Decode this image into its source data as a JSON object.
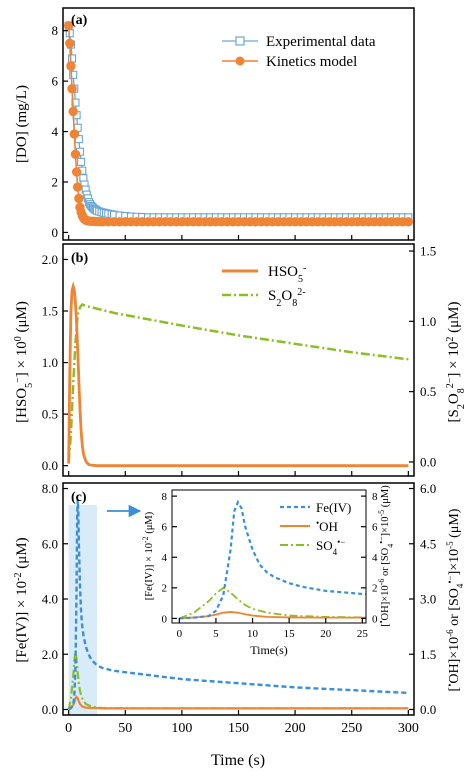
{
  "colors": {
    "experimental": "#6aa6d6",
    "kinetics": "#ee8434",
    "hso5": "#ee8434",
    "s2o8": "#8cbf26",
    "feiv": "#3b8fd8",
    "oh": "#ee8434",
    "so4": "#8cbf26",
    "highlight": "#d7ecf8",
    "arrow": "#3b8fd8"
  },
  "chart_data": [
    {
      "panel": "(a)",
      "type": "line",
      "ylabel": "[DO] (mg/L)",
      "xlim": [
        -5,
        305
      ],
      "ylim": [
        -0.3,
        8.9
      ],
      "yticks": [
        "0",
        "2",
        "4",
        "6",
        "8"
      ],
      "ytick_values": [
        0,
        2,
        4,
        6,
        8
      ],
      "legend": "top-right",
      "series": [
        {
          "name": "Experimental data",
          "marker": "open-square",
          "x": [
            0,
            1,
            2,
            3,
            4,
            5,
            6,
            7,
            8,
            9,
            10,
            11,
            12,
            13,
            14,
            15,
            16,
            17,
            18,
            19,
            20,
            21,
            22,
            23,
            24,
            25,
            27,
            29,
            31,
            33,
            35,
            38,
            40,
            45,
            50,
            55,
            60,
            65,
            70,
            75,
            80,
            85,
            90,
            95,
            100,
            105,
            110,
            115,
            120,
            125,
            130,
            135,
            140,
            145,
            150,
            155,
            160,
            165,
            170,
            175,
            180,
            185,
            190,
            195,
            200,
            205,
            210,
            215,
            220,
            225,
            230,
            235,
            240,
            245,
            250,
            255,
            260,
            265,
            270,
            275,
            280,
            285,
            290,
            295,
            300
          ],
          "y": [
            8.2,
            7.9,
            7.45,
            6.9,
            6.25,
            5.7,
            5.15,
            4.65,
            4.15,
            3.7,
            3.2,
            2.8,
            2.45,
            2.15,
            1.9,
            1.7,
            1.5,
            1.35,
            1.2,
            1.12,
            1.05,
            1.0,
            0.95,
            0.92,
            0.9,
            0.86,
            0.83,
            0.8,
            0.78,
            0.76,
            0.74,
            0.72,
            0.7,
            0.67,
            0.65,
            0.63,
            0.62,
            0.61,
            0.6,
            0.6,
            0.6,
            0.6,
            0.6,
            0.6,
            0.6,
            0.6,
            0.6,
            0.6,
            0.6,
            0.6,
            0.6,
            0.6,
            0.6,
            0.6,
            0.6,
            0.6,
            0.6,
            0.6,
            0.6,
            0.6,
            0.6,
            0.6,
            0.6,
            0.6,
            0.6,
            0.6,
            0.6,
            0.6,
            0.6,
            0.6,
            0.6,
            0.6,
            0.6,
            0.6,
            0.6,
            0.6,
            0.6,
            0.6,
            0.6,
            0.6,
            0.6,
            0.6,
            0.6,
            0.6,
            0.6
          ]
        },
        {
          "name": "Kinetics model",
          "marker": "filled-circle",
          "x": [
            0,
            1,
            2,
            3,
            4,
            5,
            6,
            7,
            8,
            9,
            10,
            11,
            12,
            13,
            14,
            15,
            16,
            17,
            18,
            20,
            22,
            24,
            26,
            28,
            30,
            35,
            40,
            45,
            50,
            55,
            60,
            65,
            70,
            75,
            80,
            85,
            90,
            95,
            100,
            105,
            110,
            115,
            120,
            125,
            130,
            135,
            140,
            145,
            150,
            155,
            160,
            165,
            170,
            175,
            180,
            185,
            190,
            195,
            200,
            205,
            210,
            215,
            220,
            225,
            230,
            235,
            240,
            245,
            250,
            255,
            260,
            265,
            270,
            275,
            280,
            285,
            290,
            295,
            300
          ],
          "y": [
            8.2,
            7.5,
            6.6,
            5.7,
            4.8,
            3.9,
            3.1,
            2.4,
            1.8,
            1.35,
            1.0,
            0.8,
            0.67,
            0.58,
            0.52,
            0.49,
            0.47,
            0.46,
            0.45,
            0.44,
            0.44,
            0.43,
            0.43,
            0.43,
            0.42,
            0.42,
            0.42,
            0.42,
            0.42,
            0.42,
            0.42,
            0.42,
            0.42,
            0.42,
            0.42,
            0.42,
            0.42,
            0.42,
            0.42,
            0.42,
            0.42,
            0.42,
            0.42,
            0.42,
            0.42,
            0.42,
            0.42,
            0.42,
            0.42,
            0.42,
            0.42,
            0.42,
            0.42,
            0.42,
            0.42,
            0.42,
            0.42,
            0.42,
            0.42,
            0.42,
            0.42,
            0.42,
            0.42,
            0.42,
            0.42,
            0.42,
            0.42,
            0.42,
            0.42,
            0.42,
            0.42,
            0.42,
            0.42,
            0.42,
            0.42,
            0.42,
            0.42,
            0.42,
            0.42
          ]
        }
      ]
    },
    {
      "panel": "(b)",
      "type": "line",
      "ylabel": "[HSO5⁻] × 10⁰ (μM)",
      "ylabel2": "[S2O8²⁻] × 10² (μM)",
      "xlim": [
        -5,
        305
      ],
      "ylim": [
        -0.1,
        2.15
      ],
      "y2lim": [
        -0.1,
        1.55
      ],
      "yticks": [
        "0.0",
        "0.5",
        "1.0",
        "1.5",
        "2.0"
      ],
      "ytick_values": [
        0,
        0.5,
        1.0,
        1.5,
        2.0
      ],
      "y2ticks": [
        "0.0",
        "0.5",
        "1.0",
        "1.5"
      ],
      "y2tick_values": [
        0,
        0.5,
        1.0,
        1.5
      ],
      "legend": "top-right",
      "series": [
        {
          "name": "HSO₅⁻",
          "axis": "left",
          "x": [
            0,
            1,
            2,
            3,
            4,
            5,
            6,
            7,
            8,
            9,
            10,
            11,
            12,
            13,
            14,
            15,
            16,
            18,
            20,
            25,
            30,
            40,
            60,
            100,
            150,
            200,
            250,
            300
          ],
          "y": [
            0.02,
            0.9,
            1.5,
            1.7,
            1.74,
            1.7,
            1.58,
            1.38,
            1.12,
            0.82,
            0.55,
            0.34,
            0.2,
            0.12,
            0.08,
            0.05,
            0.03,
            0.01,
            0.005,
            0,
            0,
            0,
            0,
            0,
            0,
            0,
            0,
            0
          ]
        },
        {
          "name": "S₂O₈²⁻",
          "axis": "right",
          "x": [
            0,
            2,
            4,
            6,
            8,
            10,
            12,
            15,
            20,
            30,
            40,
            60,
            80,
            100,
            150,
            200,
            250,
            300
          ],
          "y": [
            0,
            0.2,
            0.55,
            0.85,
            1.05,
            1.1,
            1.12,
            1.11,
            1.1,
            1.08,
            1.06,
            1.03,
            1.0,
            0.97,
            0.9,
            0.84,
            0.78,
            0.73
          ]
        }
      ]
    },
    {
      "panel": "(c)",
      "type": "line",
      "xlabel": "Time (s)",
      "ylabel": "[Fe(IV)] × 10⁻² (μM)",
      "ylabel2": "[•OH]×10⁻⁶ or [SO₄•⁻]×10⁻⁵ (μM)",
      "xlim": [
        -5,
        305
      ],
      "xticks": [
        "0",
        "50",
        "100",
        "150",
        "200",
        "250",
        "300"
      ],
      "xtick_values": [
        0,
        50,
        100,
        150,
        200,
        250,
        300
      ],
      "ylim": [
        -0.2,
        8.2
      ],
      "y2lim": [
        -0.15,
        6.15
      ],
      "yticks": [
        "0.0",
        "2.0",
        "4.0",
        "6.0",
        "8.0"
      ],
      "ytick_values": [
        0,
        2,
        4,
        6,
        8
      ],
      "y2ticks": [
        "0.0",
        "1.5",
        "3.0",
        "4.5",
        "6.0"
      ],
      "y2tick_values": [
        0,
        1.5,
        3.0,
        4.5,
        6.0
      ],
      "highlight_range": [
        0,
        25
      ],
      "series": [
        {
          "name": "Fe(IV)",
          "axis": "left",
          "x": [
            0,
            2,
            4,
            5,
            6,
            7,
            7.5,
            8,
            8.5,
            9,
            10,
            11,
            12,
            13,
            14,
            15,
            17,
            20,
            25,
            30,
            40,
            60,
            80,
            100,
            150,
            200,
            250,
            300
          ],
          "y": [
            0,
            0.05,
            0.15,
            0.5,
            1.5,
            4.5,
            7.0,
            7.6,
            7.2,
            6.0,
            4.5,
            3.5,
            3.0,
            2.7,
            2.5,
            2.3,
            2.05,
            1.8,
            1.6,
            1.5,
            1.4,
            1.3,
            1.2,
            1.1,
            0.95,
            0.8,
            0.7,
            0.6
          ]
        },
        {
          "name": "•OH",
          "axis": "right",
          "x": [
            0,
            2,
            4,
            5,
            6,
            7,
            8,
            9,
            10,
            12,
            15,
            20,
            25,
            30,
            60,
            100,
            150,
            200,
            250,
            300
          ],
          "y": [
            0,
            0.05,
            0.12,
            0.2,
            0.3,
            0.34,
            0.3,
            0.22,
            0.15,
            0.08,
            0.05,
            0.04,
            0.04,
            0.03,
            0.03,
            0.03,
            0.03,
            0.03,
            0.03,
            0.03
          ]
        },
        {
          "name": "SO₄•⁻",
          "axis": "right",
          "x": [
            0,
            2,
            4,
            5,
            6,
            7,
            8,
            9,
            10,
            12,
            15,
            20,
            25,
            30,
            60,
            100,
            150,
            200,
            250,
            300
          ],
          "y": [
            0,
            0.3,
            0.9,
            1.3,
            1.6,
            1.35,
            1.0,
            0.7,
            0.5,
            0.3,
            0.15,
            0.08,
            0.05,
            0.04,
            0.03,
            0.03,
            0.03,
            0.03,
            0.03,
            0.03
          ]
        }
      ],
      "inset": {
        "xlabel": "Time(s)",
        "ylabel": "[Fe(IV)] × 10⁻² (μM)",
        "ylabel2": "[•OH]×10⁻⁶ or [SO₄•⁻]×10⁻⁵ (μM)",
        "xlim": [
          -1,
          25.5
        ],
        "xticks": [
          "0",
          "5",
          "10",
          "15",
          "20",
          "25"
        ],
        "xtick_values": [
          0,
          5,
          10,
          15,
          20,
          25
        ],
        "ylim": [
          -0.3,
          8.4
        ],
        "yticks": [
          "0",
          "2",
          "4",
          "6",
          "8"
        ],
        "ytick_values": [
          0,
          2,
          4,
          6,
          8
        ],
        "y2ticks": [
          "0",
          "2",
          "4",
          "6",
          "8"
        ],
        "y2tick_values": [
          0,
          2,
          4,
          6,
          8
        ],
        "legend": "top-right"
      }
    }
  ]
}
